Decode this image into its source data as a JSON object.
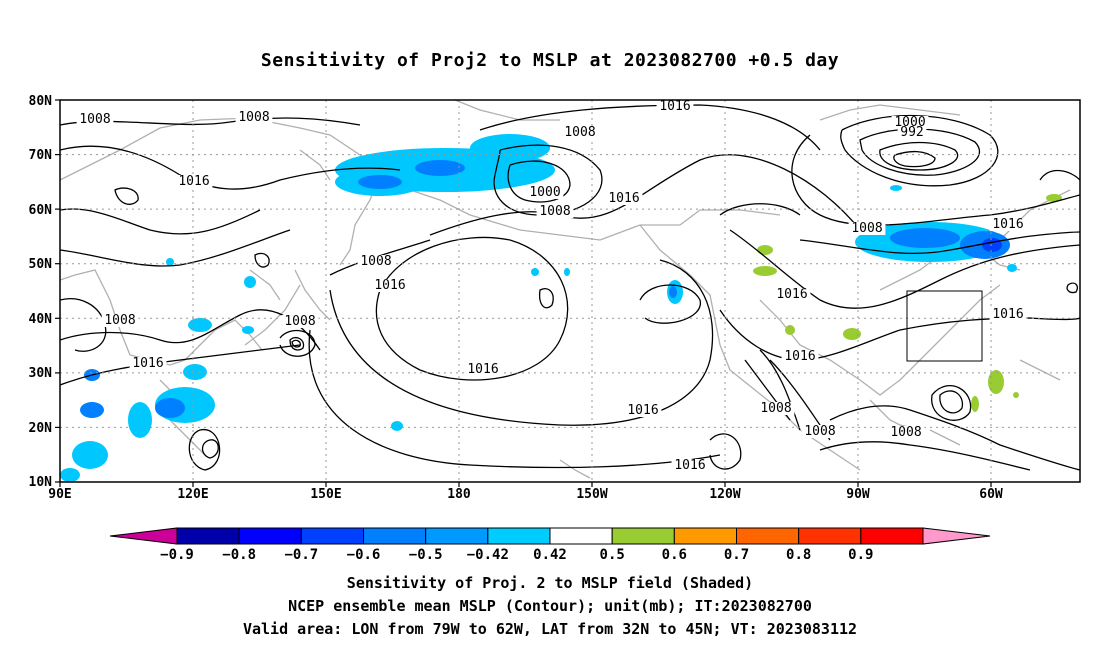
{
  "title": "Sensitivity of Proj2 to MSLP at 2023082700 +0.5 day",
  "map": {
    "lat_labels": [
      "80N",
      "70N",
      "60N",
      "50N",
      "40N",
      "30N",
      "20N",
      "10N"
    ],
    "lon_labels": [
      "90E",
      "120E",
      "150E",
      "180",
      "150W",
      "120W",
      "90W",
      "60W"
    ],
    "extent": {
      "lon_min": 90,
      "lon_max": 320,
      "lat_min": 10,
      "lat_max": 80
    },
    "contour_unit": "mb",
    "contour_labels": [
      "1008",
      "1008",
      "1016",
      "1016",
      "1008",
      "1000",
      "1008",
      "1016",
      "1016",
      "1000",
      "992",
      "1008",
      "1016",
      "1008",
      "1016",
      "1008",
      "1008",
      "1016",
      "1016",
      "1016",
      "1016",
      "1008",
      "1008",
      "1016",
      "1008",
      "1016"
    ],
    "valid_area": {
      "lon": [
        "79W",
        "62W"
      ],
      "lat": [
        "32N",
        "45N"
      ]
    },
    "colors": {
      "land_outline": "#b0b0b0",
      "grid": "#999999",
      "contour": "#000000",
      "shade_light_blue": "#00c8ff",
      "shade_blue": "#0080ff",
      "shade_dark_blue": "#0040ff",
      "shade_green": "#99cc33"
    }
  },
  "colorbar": {
    "labels": [
      "−0.9",
      "−0.8",
      "−0.7",
      "−0.6",
      "−0.5",
      "−0.42",
      "0.42",
      "0.5",
      "0.6",
      "0.7",
      "0.8",
      "0.9"
    ],
    "colors": [
      "#cc0099",
      "#0000aa",
      "#0000ff",
      "#0040ff",
      "#0080ff",
      "#0099ff",
      "#00ccff",
      "#ffffff",
      "#99cc33",
      "#ff9900",
      "#ff6600",
      "#ff3300",
      "#ff0000",
      "#ff99cc"
    ]
  },
  "captions": {
    "line1": "Sensitivity of Proj. 2 to MSLP field (Shaded)",
    "line2": "NCEP ensemble mean MSLP (Contour); unit(mb); IT:2023082700",
    "line3": "Valid area: LON from 79W to 62W, LAT from 32N to 45N; VT: 2023083112"
  }
}
